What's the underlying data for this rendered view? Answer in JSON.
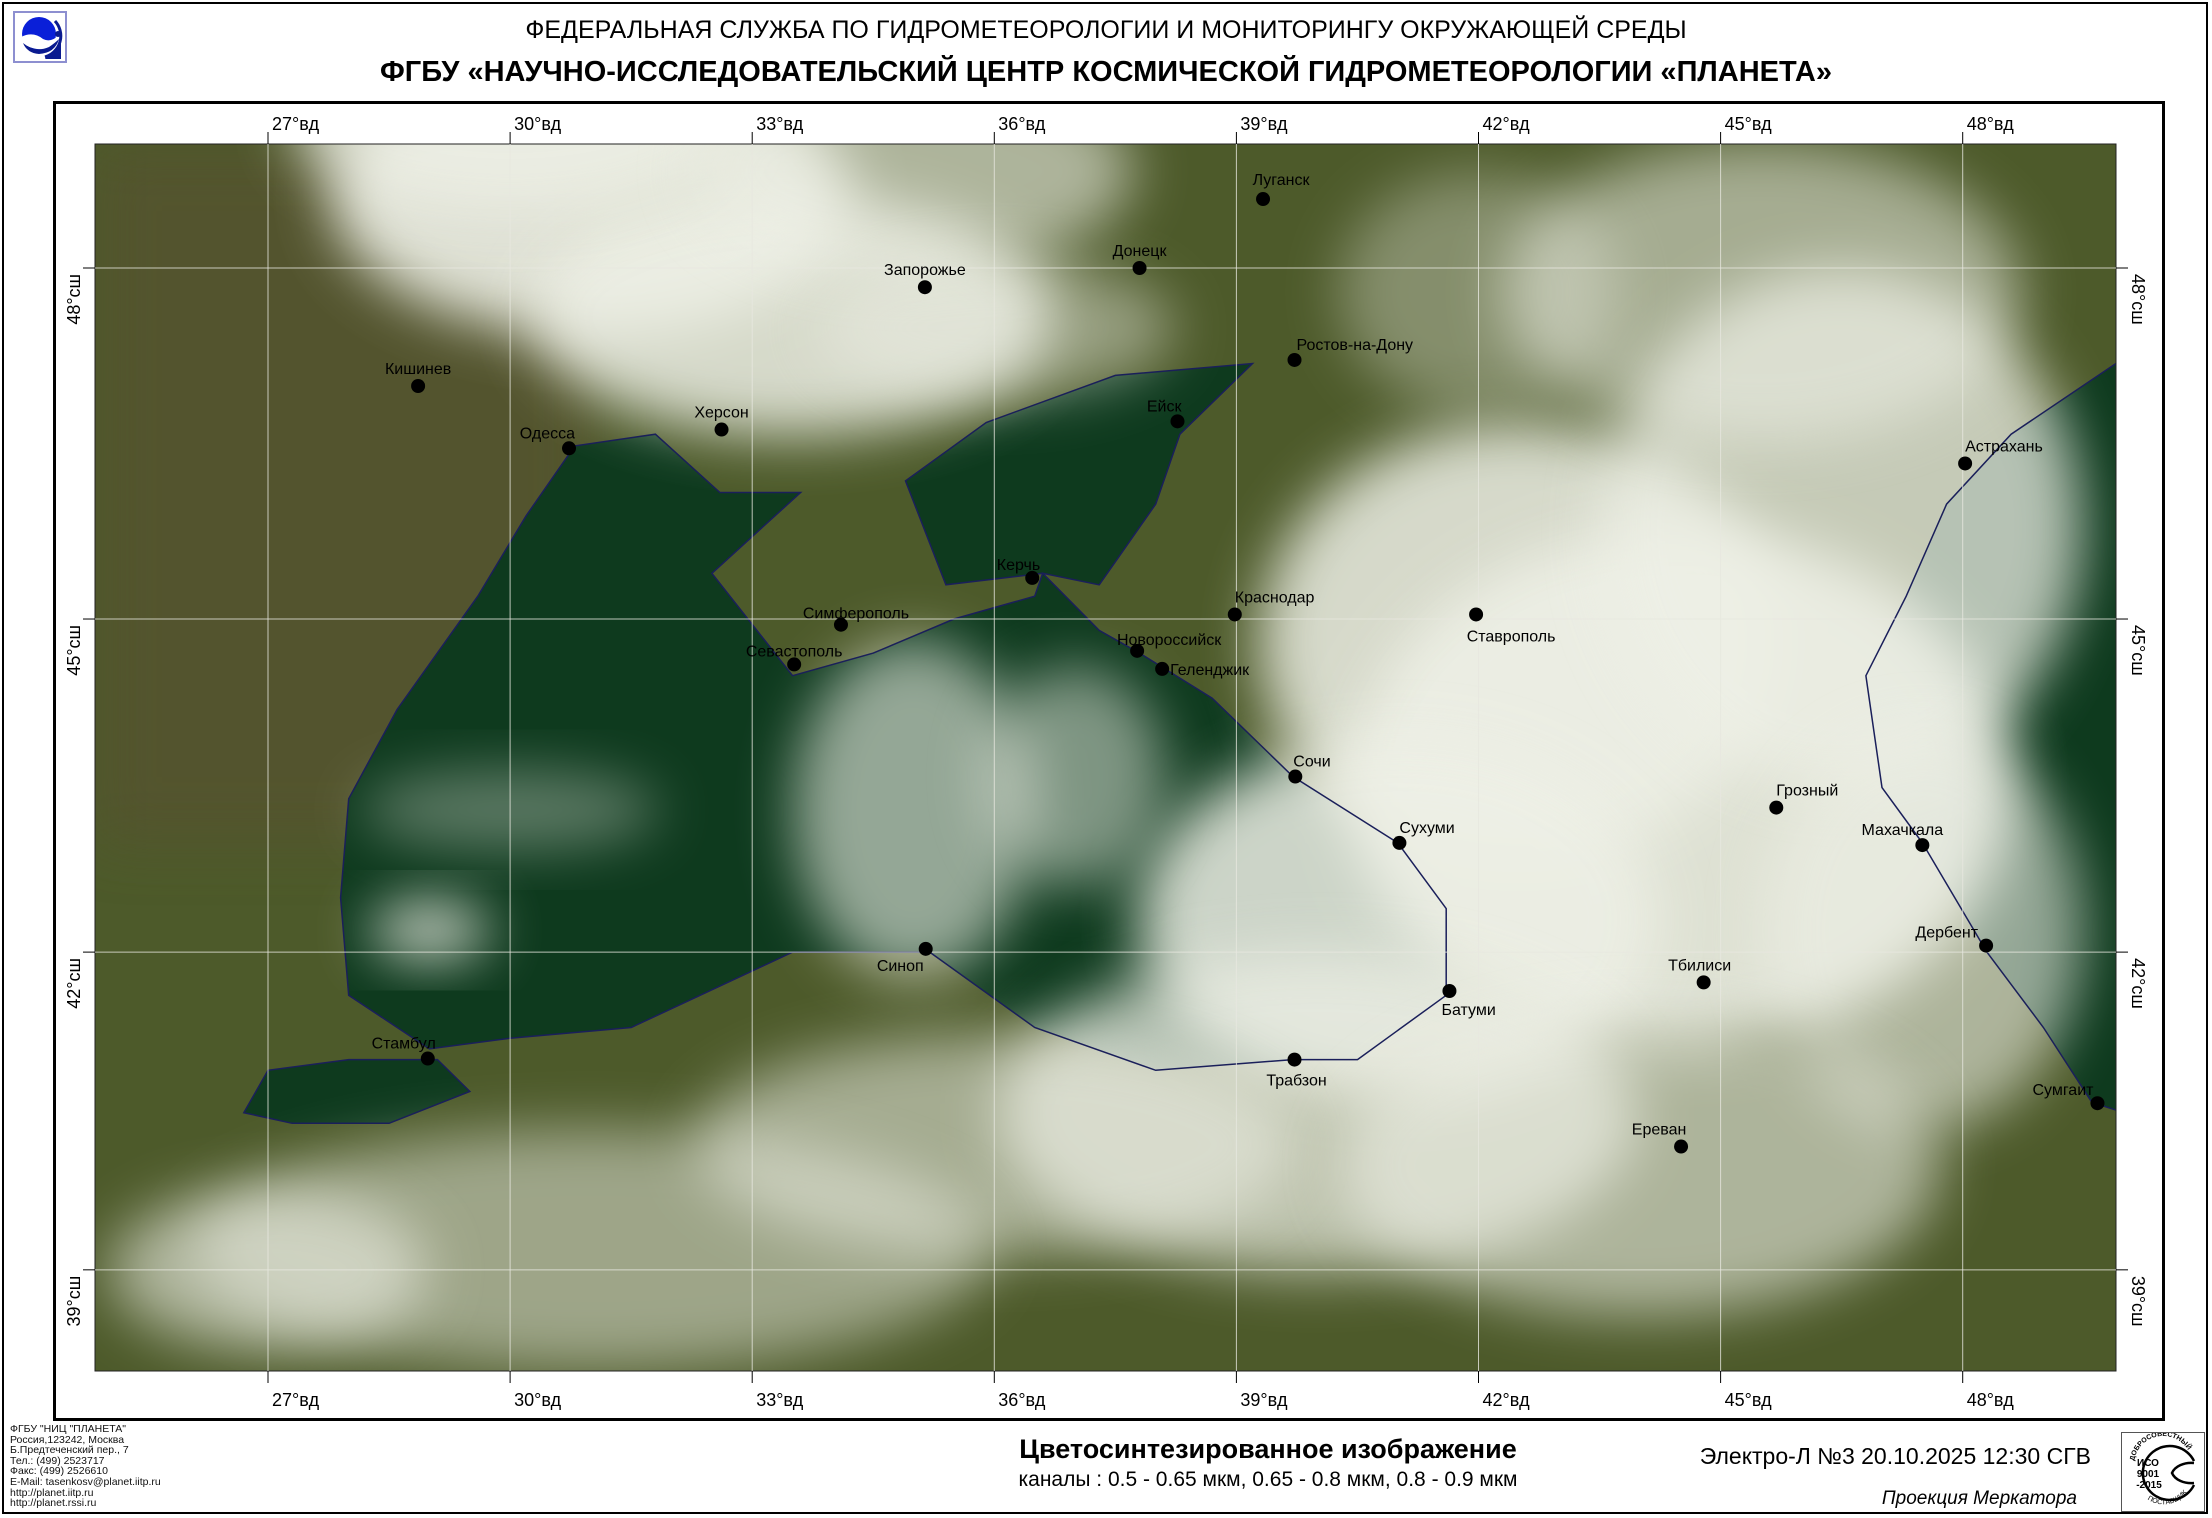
{
  "header": {
    "line1": "ФЕДЕРАЛЬНАЯ СЛУЖБА ПО ГИДРОМЕТЕОРОЛОГИИ И МОНИТОРИНГУ ОКРУЖАЮЩЕЙ СРЕДЫ",
    "line2": "ФГБУ «НАУЧНО-ИССЛЕДОВАТЕЛЬСКИЙ ЦЕНТР КОСМИЧЕСКОЙ ГИДРОМЕТЕОРОЛОГИИ «ПЛАНЕТА»",
    "logo_icon": "planeta-logo"
  },
  "map": {
    "projection": "mercator",
    "lon_range": [
      24.6,
      49.9
    ],
    "lat_range": [
      37.9,
      49.6
    ],
    "colors": {
      "sea": "#0e3a1e",
      "land": "#4d5a2a",
      "cloud": "#eef0e6",
      "grid": "#e8e8e0",
      "coast": "#1a1f5a",
      "city": "#000000"
    },
    "lon_lines": [
      {
        "lon": 27,
        "label": "27°вд"
      },
      {
        "lon": 30,
        "label": "30°вд"
      },
      {
        "lon": 33,
        "label": "33°вд"
      },
      {
        "lon": 36,
        "label": "36°вд"
      },
      {
        "lon": 39,
        "label": "39°вд"
      },
      {
        "lon": 42,
        "label": "42°вд"
      },
      {
        "lon": 45,
        "label": "45°вд"
      },
      {
        "lon": 48,
        "label": "48°вд"
      }
    ],
    "lat_lines": [
      {
        "lat": 48,
        "label": "48°сш"
      },
      {
        "lat": 45,
        "label": "45°сш"
      },
      {
        "lat": 42,
        "label": "42°сш"
      },
      {
        "lat": 39,
        "label": "39°сш"
      }
    ],
    "cities": [
      {
        "name": "Луганск",
        "lon": 39.33,
        "lat": 48.57
      },
      {
        "name": "Донецк",
        "lon": 37.8,
        "lat": 48.0
      },
      {
        "name": "Запорожье",
        "lon": 35.14,
        "lat": 47.84
      },
      {
        "name": "Кишинев",
        "lon": 28.86,
        "lat": 47.01
      },
      {
        "name": "Ростов-на-Дону",
        "lon": 39.72,
        "lat": 47.23
      },
      {
        "name": "Ейск",
        "lon": 38.27,
        "lat": 46.71
      },
      {
        "name": "Херсон",
        "lon": 32.62,
        "lat": 46.64
      },
      {
        "name": "Одесса",
        "lon": 30.73,
        "lat": 46.48
      },
      {
        "name": "Астрахань",
        "lon": 48.03,
        "lat": 46.35
      },
      {
        "name": "Керчь",
        "lon": 36.47,
        "lat": 45.36
      },
      {
        "name": "Краснодар",
        "lon": 38.98,
        "lat": 45.04
      },
      {
        "name": "Ставрополь",
        "lon": 41.97,
        "lat": 45.04
      },
      {
        "name": "Симферополь",
        "lon": 34.1,
        "lat": 44.95
      },
      {
        "name": "Севастополь",
        "lon": 33.52,
        "lat": 44.6
      },
      {
        "name": "Новороссийск",
        "lon": 37.77,
        "lat": 44.72
      },
      {
        "name": "Геленджик",
        "lon": 38.08,
        "lat": 44.56
      },
      {
        "name": "Сочи",
        "lon": 39.73,
        "lat": 43.6
      },
      {
        "name": "Сухуми",
        "lon": 41.02,
        "lat": 43.0
      },
      {
        "name": "Грозный",
        "lon": 45.69,
        "lat": 43.32
      },
      {
        "name": "Махачкала",
        "lon": 47.5,
        "lat": 42.98
      },
      {
        "name": "Дербент",
        "lon": 48.29,
        "lat": 42.06
      },
      {
        "name": "Синоп",
        "lon": 35.15,
        "lat": 42.03
      },
      {
        "name": "Батуми",
        "lon": 41.64,
        "lat": 41.64
      },
      {
        "name": "Тбилиси",
        "lon": 44.79,
        "lat": 41.72
      },
      {
        "name": "Стамбул",
        "lon": 28.98,
        "lat": 41.01
      },
      {
        "name": "Трабзон",
        "lon": 39.72,
        "lat": 41.0
      },
      {
        "name": "Сумгаит",
        "lon": 49.67,
        "lat": 40.59
      },
      {
        "name": "Ереван",
        "lon": 44.51,
        "lat": 40.18
      }
    ]
  },
  "footer": {
    "org_lines": [
      "ФГБУ \"НИЦ \"ПЛАНЕТА\"",
      "Россия,123242, Москва",
      "Б.Предтеченский пер., 7",
      "Тел.:  (499) 2523717",
      "Факс: (499) 2526610",
      "E-Mail: tasenkosv@planet.iitp.ru",
      "http://planet.iitp.ru",
      "http://planet.rssi.ru"
    ],
    "title": "Цветосинтезированное изображение",
    "channels": "каналы : 0.5 - 0.65 мкм, 0.65 - 0.8 мкм, 0.8 - 0.9 мкм",
    "satellite_time": "Электро-Л №3 20.10.2025  12:30 СГВ",
    "projection": "Проекция Меркатора",
    "iso_badge": {
      "top": "ДОБРОСОВЕСТНЫЙ",
      "center": [
        "ИСО",
        "9001",
        "-2015"
      ],
      "bottom": "ПОСТАВЩИК"
    }
  }
}
